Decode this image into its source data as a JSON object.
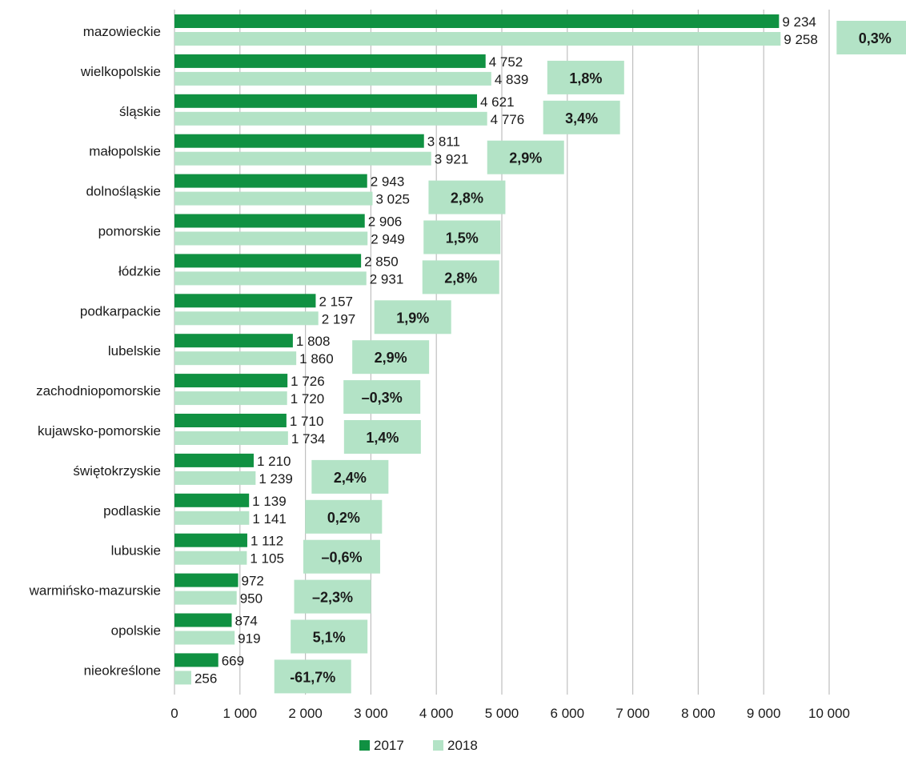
{
  "chart_data": {
    "type": "bar",
    "orientation": "horizontal",
    "categories": [
      "mazowieckie",
      "wielkopolskie",
      "śląskie",
      "małopolskie",
      "dolnośląskie",
      "pomorskie",
      "łódzkie",
      "podkarpackie",
      "lubelskie",
      "zachodniopomorskie",
      "kujawsko-pomorskie",
      "świętokrzyskie",
      "podlaskie",
      "lubuskie",
      "warmińsko-mazurskie",
      "opolskie",
      "nieokreślone"
    ],
    "series": [
      {
        "name": "2017",
        "color": "#109142",
        "values": [
          9234,
          4752,
          4621,
          3811,
          2943,
          2906,
          2850,
          2157,
          1808,
          1726,
          1710,
          1210,
          1139,
          1112,
          972,
          874,
          669
        ],
        "labels": [
          "9 234",
          "4 752",
          "4 621",
          "3 811",
          "2 943",
          "2 906",
          "2 850",
          "2 157",
          "1 808",
          "1 726",
          "1 710",
          "1 210",
          "1 139",
          "1 112",
          "972",
          "874",
          "669"
        ]
      },
      {
        "name": "2018",
        "color": "#b3e3c6",
        "values": [
          9258,
          4839,
          4776,
          3921,
          3025,
          2949,
          2931,
          2197,
          1860,
          1720,
          1734,
          1239,
          1141,
          1105,
          950,
          919,
          256
        ],
        "labels": [
          "9 258",
          "4 839",
          "4 776",
          "3 921",
          "3 025",
          "2 949",
          "2 931",
          "2 197",
          "1 860",
          "1 720",
          "1 734",
          "1 239",
          "1 141",
          "1 105",
          "950",
          "919",
          "256"
        ]
      }
    ],
    "change_labels": [
      "0,3%",
      "1,8%",
      "3,4%",
      "2,9%",
      "2,8%",
      "1,5%",
      "2,8%",
      "1,9%",
      "2,9%",
      "–0,3%",
      "1,4%",
      "2,4%",
      "0,2%",
      "–0,6%",
      "–2,3%",
      "5,1%",
      "-61,7%"
    ],
    "xlim": [
      0,
      10000
    ],
    "xticks": [
      0,
      1000,
      2000,
      3000,
      4000,
      5000,
      6000,
      7000,
      8000,
      9000,
      10000
    ],
    "xtick_labels": [
      "0",
      "1 000",
      "2 000",
      "3 000",
      "4 000",
      "5 000",
      "6 000",
      "7 000",
      "8 000",
      "9 000",
      "10 000"
    ],
    "grid": "vertical",
    "legend_placement": "bottom-center",
    "legend": [
      "2017",
      "2018"
    ],
    "title": "",
    "xlabel": "",
    "ylabel": ""
  }
}
